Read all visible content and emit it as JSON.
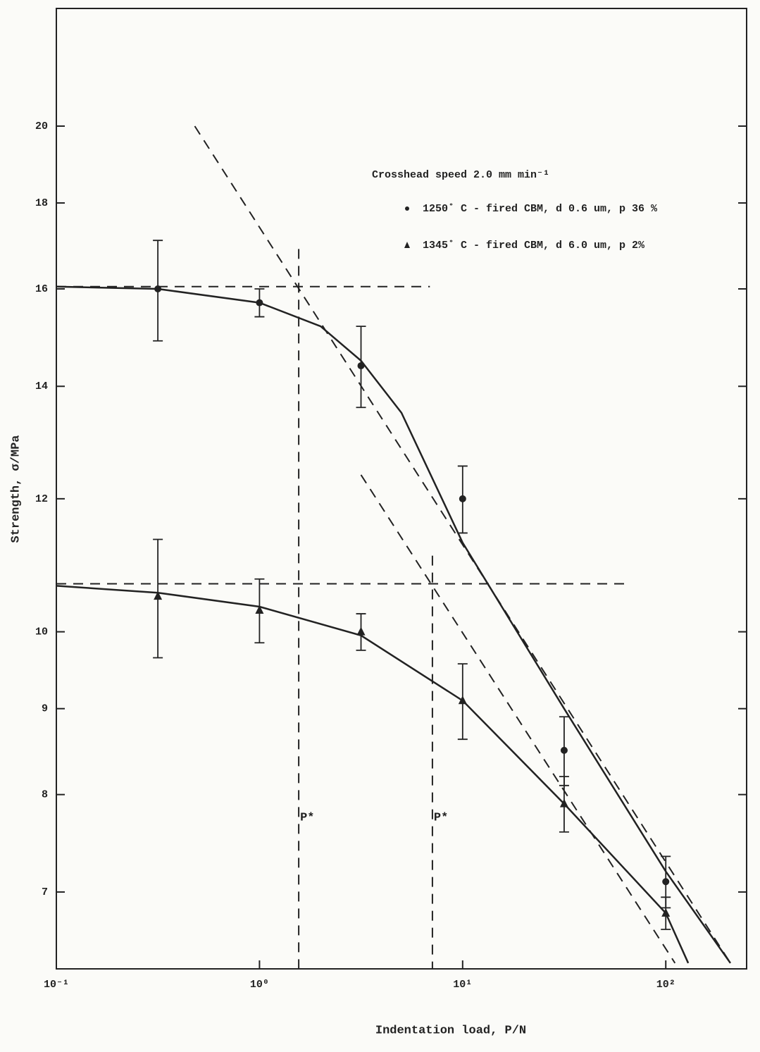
{
  "chart_data": {
    "type": "scatter",
    "title": "Crosshead speed 2.0 mm min⁻¹",
    "x_label": "Indentation load, P/N",
    "y_label": "Strength, σ/MPa",
    "x_log": true,
    "y_log": true,
    "xlim": [
      0.1,
      250
    ],
    "ylim": [
      6.3,
      23.5
    ],
    "xticks": [
      {
        "value": 0.1,
        "label": "10⁻¹"
      },
      {
        "value": 1,
        "label": "10⁰"
      },
      {
        "value": 10,
        "label": "10¹"
      },
      {
        "value": 100,
        "label": "10²"
      }
    ],
    "yticks": [
      7,
      8,
      9,
      10,
      12,
      14,
      16,
      18,
      20
    ],
    "series": [
      {
        "name": "1250˚ C - fired CBM, d 0.6 um, p 36 %",
        "marker": "circle",
        "color": "#222",
        "x": [
          0.316,
          1,
          3.16,
          10,
          31.6,
          100
        ],
        "values": [
          16,
          15.7,
          14.4,
          12,
          8.5,
          7.1
        ],
        "errors": [
          1.1,
          0.3,
          0.8,
          0.55,
          0.4,
          0.25
        ]
      },
      {
        "name": "1345˚ C - fired CBM, d 6.0 um, p 2%",
        "marker": "triangle",
        "color": "#222",
        "x": [
          0.316,
          1,
          3.16,
          10,
          31.6,
          100
        ],
        "values": [
          10.5,
          10.3,
          10.0,
          9.1,
          7.9,
          6.8
        ],
        "errors": [
          0.85,
          0.45,
          0.25,
          0.47,
          0.3,
          0.15
        ]
      }
    ],
    "curves": [
      {
        "dashed": false,
        "x": [
          0.1,
          0.316,
          1,
          2,
          3.16,
          5,
          10,
          31.6,
          100,
          208
        ],
        "values": [
          16.05,
          16,
          15.7,
          15.2,
          14.5,
          13.5,
          11.3,
          9.0,
          7.2,
          6.35
        ]
      },
      {
        "dashed": false,
        "x": [
          0.1,
          0.316,
          1,
          3.16,
          10,
          31.6,
          100,
          129
        ],
        "values": [
          10.65,
          10.55,
          10.35,
          9.95,
          9.1,
          7.9,
          6.8,
          6.35
        ]
      },
      {
        "dashed": true,
        "x": [
          0.1,
          6.9
        ],
        "values": [
          16.05,
          16.05
        ]
      },
      {
        "dashed": true,
        "x": [
          0.1,
          63
        ],
        "values": [
          10.68,
          10.68
        ]
      },
      {
        "dashed": true,
        "x": [
          0.48,
          208
        ],
        "values": [
          20,
          6.35
        ]
      },
      {
        "dashed": true,
        "x": [
          3.16,
          111
        ],
        "values": [
          12.4,
          6.35
        ]
      }
    ],
    "pstar": [
      {
        "x": 1.56,
        "top": 16.9,
        "label": "P*"
      },
      {
        "x": 7.1,
        "top": 11.1,
        "label": "P*"
      }
    ]
  }
}
